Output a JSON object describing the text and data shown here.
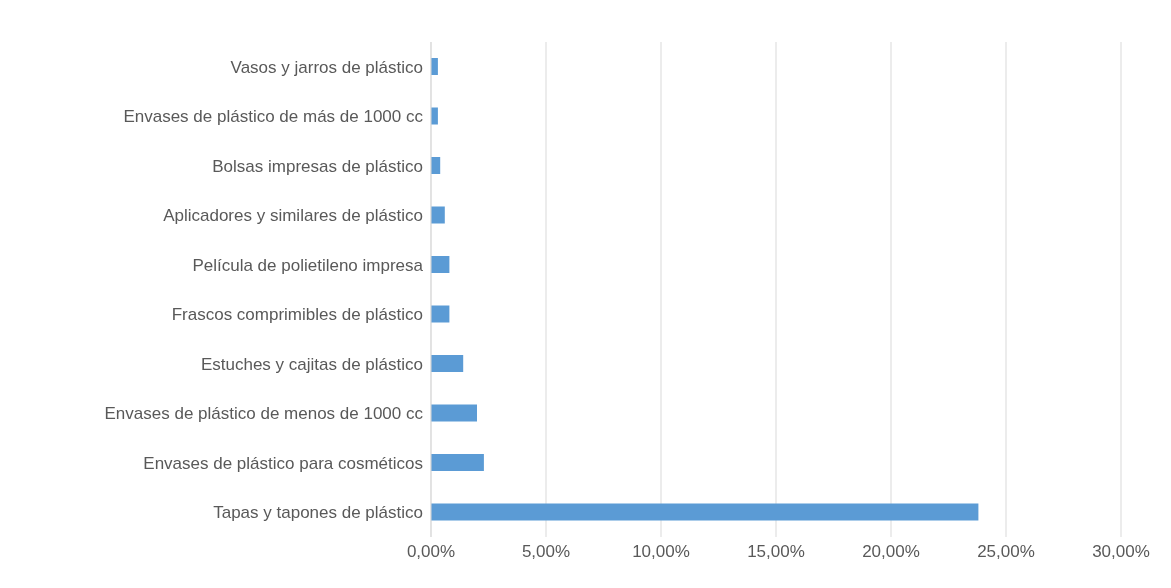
{
  "chart_data": {
    "type": "bar",
    "orientation": "horizontal",
    "categories": [
      "Vasos y jarros de plástico",
      "Envases de plástico de más de 1000 cc",
      "Bolsas impresas de plástico",
      "Aplicadores y similares de plástico",
      "Película de polietileno impresa",
      "Frascos comprimibles de plástico",
      "Estuches y cajitas de plástico",
      "Envases de plástico de menos de 1000 cc",
      "Envases de plástico para cosméticos",
      "Tapas y tapones de plástico"
    ],
    "values": [
      0.3,
      0.3,
      0.4,
      0.6,
      0.8,
      0.8,
      1.4,
      2.0,
      2.3,
      23.8
    ],
    "color": "#5b9bd5",
    "xlim": [
      0,
      30
    ],
    "xticks": [
      {
        "value": 0,
        "label": "0,00%"
      },
      {
        "value": 5,
        "label": "5,00%"
      },
      {
        "value": 10,
        "label": "10,00%"
      },
      {
        "value": 15,
        "label": "15,00%"
      },
      {
        "value": 20,
        "label": "20,00%"
      },
      {
        "value": 25,
        "label": "25,00%"
      },
      {
        "value": 30,
        "label": "30,00%"
      }
    ],
    "grid": "x"
  }
}
